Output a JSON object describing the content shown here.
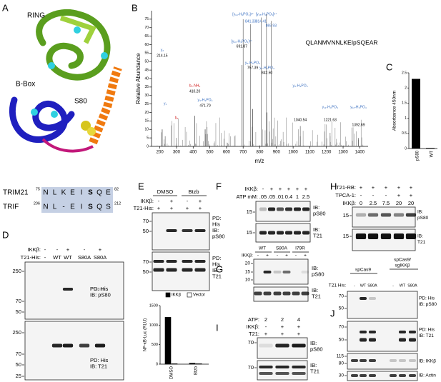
{
  "panel_labels": [
    "A",
    "B",
    "C",
    "D",
    "E",
    "F",
    "G",
    "H",
    "I",
    "J"
  ],
  "A": {
    "domains": [
      "RING",
      "B-Box",
      "S80"
    ],
    "alignment": [
      {
        "name": "TRIM21",
        "start": "75",
        "seq": [
          "N",
          "L",
          "K",
          "E",
          "I",
          "S",
          "Q",
          "E"
        ],
        "end": "82"
      },
      {
        "name": "TRIF",
        "start": "206",
        "seq": [
          "N",
          "L",
          "-",
          "E",
          "I",
          "S",
          "Q",
          "S"
        ],
        "end": "212"
      }
    ]
  },
  "B": {
    "ylabel": "Relative Abundance",
    "xlabel": "m/z",
    "xlim": [
      150,
      1450
    ],
    "xticks": [
      200,
      300,
      400,
      500,
      600,
      700,
      800,
      900,
      1000,
      1100,
      1200,
      1300,
      1400
    ],
    "ylim": [
      0,
      80
    ],
    "yticks": [
      0,
      5,
      10,
      15,
      20,
      25,
      30,
      35,
      40,
      45,
      50,
      55,
      60,
      65,
      70,
      75
    ],
    "sequence": "QLANMVNNLKEIpSQEAR",
    "peak_labels": [
      "[y₁₃-H₃PO₄]²⁺",
      "[y₁₅-H₃PO₄]²⁺",
      "841.33",
      "814.41",
      "869.93",
      "y₂",
      "214.15",
      "[y₁₁-H₃PO₄]²⁺",
      "691.87",
      "y₅-H₃PO₄",
      "757.39",
      "y₇-H₃PO₄",
      "842.50",
      "b₅-NH₃",
      "410.20",
      "y₃-H₃PO₄",
      "471.70",
      "y₁",
      "b₂",
      "y₈-H₃PO₄",
      "1040.54",
      "y₁₁-H₃PO₄",
      "1221.63",
      "y₁₂-H₃PO₄",
      "1392.69"
    ]
  },
  "C": {
    "ylabel": "Absorbance 450nm",
    "ylim": [
      0,
      2.5
    ],
    "yticks": [
      0,
      0.5,
      1,
      1.5,
      2,
      2.5
    ],
    "categories": [
      "pS80",
      "WT"
    ],
    "values": [
      2.3,
      0.02
    ],
    "color": "#000000"
  },
  "D": {
    "groups": [],
    "rows": [
      {
        "label": "IKKβ:",
        "marks": [
          "-",
          "-",
          "+",
          "-",
          "+"
        ]
      },
      {
        "label": "T21-His:",
        "marks": [
          "-",
          "WT",
          "WT",
          "S80A",
          "S80A"
        ]
      }
    ],
    "blots": [
      {
        "markers": [
          "250",
          "70",
          "50"
        ],
        "labels": [
          "PD: His",
          "IB:  pS80"
        ]
      },
      {
        "markers": [
          "250",
          "70",
          "50",
          "25"
        ],
        "labels": [
          "PD: His",
          "IB:  T21"
        ]
      }
    ]
  },
  "E": {
    "groups": [
      [
        "DMSO"
      ],
      [
        "Btzb"
      ]
    ],
    "rows": [
      {
        "label": "IKKβ:",
        "marks": [
          "-",
          "+",
          "-",
          "+"
        ]
      },
      {
        "label": "T21-His:",
        "marks": [
          "+",
          "+",
          "+",
          "+"
        ]
      }
    ],
    "blots": [
      {
        "markers": [
          "70",
          "50"
        ],
        "labels": [
          "PD:",
          "His",
          "IB:",
          "pS80"
        ]
      },
      {
        "markers": [
          "70",
          "50"
        ],
        "labels": [
          "PD:",
          "His",
          "IB:",
          "T21"
        ]
      }
    ],
    "chart": {
      "ylabel": "NF-κB-Luc (RLU)",
      "ylim": [
        0,
        1500
      ],
      "yticks": [
        0,
        500,
        1000,
        1500
      ],
      "categories": [
        "DMSO",
        "Btzb"
      ],
      "series": [
        {
          "name": "IKKβ",
          "color": "#000000",
          "values": [
            1200,
            25
          ]
        },
        {
          "name": "Vector",
          "color": "#ffffff",
          "values": [
            10,
            15
          ]
        }
      ]
    }
  },
  "F": {
    "groups": [],
    "rows": [
      {
        "label": "IKKβ:",
        "marks": [
          "-",
          "+",
          "+",
          "+",
          "+",
          "+"
        ]
      },
      {
        "label": "ATP mM:",
        "marks": [
          ".05",
          ".05",
          ".01",
          "0.4",
          "1",
          "2.5"
        ]
      }
    ],
    "blots": [
      {
        "markers": [
          "15"
        ],
        "labels": [
          "IB:",
          "pS80"
        ]
      },
      {
        "markers": [
          "15"
        ],
        "labels": [
          "IB:",
          "T21"
        ]
      }
    ]
  },
  "G": {
    "groups": [
      [
        "WT"
      ],
      [
        "S80A"
      ],
      [
        "I79R"
      ]
    ],
    "rows": [
      {
        "label": "IKKβ:",
        "marks": [
          "-",
          "+",
          "-",
          "+",
          "-",
          "+"
        ]
      }
    ],
    "blots": [
      {
        "markers": [
          "20",
          "15",
          "10"
        ],
        "labels": [
          "IB:",
          "pS80"
        ]
      },
      {
        "markers": [],
        "labels": [
          "IB:",
          "T21"
        ]
      }
    ]
  },
  "H": {
    "groups": [],
    "rows": [
      {
        "label": "T21-RB:",
        "marks": [
          "+",
          "+",
          "+",
          "+",
          "+"
        ]
      },
      {
        "label": "TPCA-1:",
        "marks": [
          "-",
          "-",
          "-",
          "+",
          "+"
        ]
      },
      {
        "label": "IKKβ:",
        "marks": [
          "0",
          "2.5",
          "7.5",
          "20",
          "20"
        ]
      }
    ],
    "blots": [
      {
        "markers": [
          "15"
        ],
        "labels": [
          "IB:",
          "pS80"
        ]
      },
      {
        "markers": [
          "15"
        ],
        "labels": [
          "IB:",
          "T21"
        ]
      }
    ]
  },
  "I": {
    "groups": [],
    "rows": [
      {
        "label": "ATP:",
        "marks": [
          "2",
          "2",
          "4"
        ]
      },
      {
        "label": "IKKβ:",
        "marks": [
          "-",
          "+",
          "+"
        ]
      },
      {
        "label": "T21:",
        "marks": [
          "+",
          "+",
          "+"
        ]
      }
    ],
    "blots": [
      {
        "markers": [
          "70"
        ],
        "labels": [
          "IB:",
          "pS80"
        ]
      },
      {
        "markers": [
          "70"
        ],
        "labels": [
          "IB:",
          "T21"
        ]
      }
    ]
  },
  "J": {
    "groups": [
      [
        "spCas9"
      ],
      [
        "spCas9/",
        "sgIKKβ"
      ]
    ],
    "rows": [
      {
        "label": "T21 His:",
        "marks": [
          "-",
          "WT",
          "S80A",
          "-",
          "WT",
          "S80A"
        ]
      }
    ],
    "blots": [
      {
        "markers": [
          "70",
          "50"
        ],
        "labels": [
          "PD: His",
          "IB: pS80"
        ]
      },
      {
        "markers": [
          "70",
          "50"
        ],
        "labels": [
          "PD: His",
          "IB: T21"
        ]
      },
      {
        "markers": [
          "115",
          "80"
        ],
        "labels": [
          "IB: IKKβ"
        ]
      },
      {
        "markers": [
          "30"
        ],
        "labels": [
          "IB: Actin"
        ]
      }
    ]
  }
}
